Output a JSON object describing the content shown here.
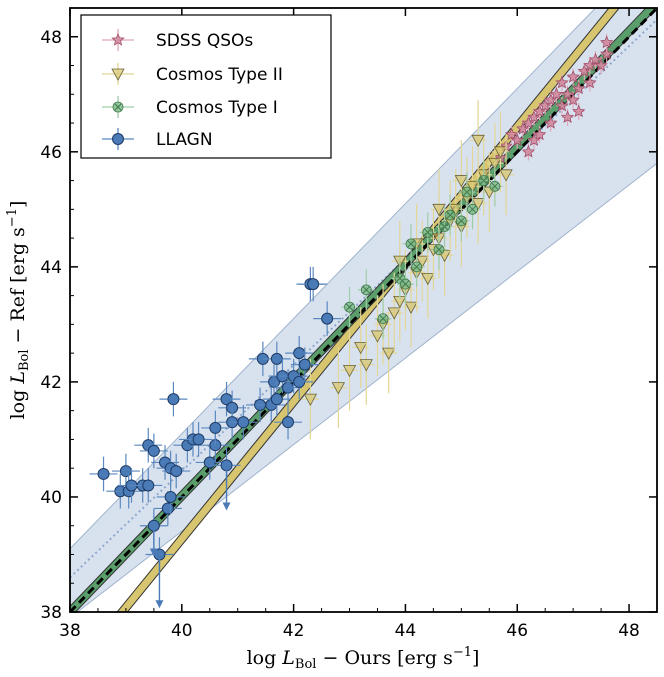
{
  "chart_data": {
    "type": "scatter",
    "title": "",
    "xlabel": "log L_Bol − Ours [erg s−1]",
    "ylabel": "log L_Bol − Ref [erg s−1]",
    "xlabel_parts": {
      "pre": "log ",
      "L": "L",
      "sub": "Bol",
      "post": " − Ours [erg s",
      "sup": "−1",
      "end": "]"
    },
    "ylabel_parts": {
      "pre": "log ",
      "L": "L",
      "sub": "Bol",
      "post": " − Ref [erg s",
      "sup": "−1",
      "end": "]"
    },
    "xlim": [
      38,
      48.5
    ],
    "ylim": [
      38,
      48.5
    ],
    "xticks": [
      38,
      40,
      42,
      44,
      46,
      48
    ],
    "yticks": [
      38,
      40,
      42,
      44,
      46,
      48
    ],
    "xtick_labels": [
      "38",
      "40",
      "42",
      "44",
      "46",
      "48"
    ],
    "ytick_labels": [
      "38",
      "40",
      "42",
      "44",
      "46",
      "48"
    ],
    "legend": {
      "placement": "top-left",
      "entries": [
        {
          "label": "SDSS QSOs",
          "marker": "star",
          "color": "#d0849a"
        },
        {
          "label": "Cosmos Type II",
          "marker": "triangle-down",
          "color": "#d7c66f"
        },
        {
          "label": "Cosmos Type I",
          "marker": "x-circle",
          "color": "#79b783"
        },
        {
          "label": "LLAGN",
          "marker": "circle",
          "color": "#4a7bb7"
        }
      ]
    },
    "confidence_band": {
      "color": "#c3d3e6",
      "lower_at_38": 37.9,
      "lower_at_48.5": 45.8,
      "upper_at_38": 39.1,
      "upper_at_48.5": 49.6
    },
    "fit_lines": [
      {
        "name": "one-to-one",
        "style": "dashed",
        "color": "#000000",
        "x": [
          38,
          48.5
        ],
        "y": [
          38.0,
          48.5
        ]
      },
      {
        "name": "joint fit",
        "style": "dotted",
        "color": "#8fa8cc",
        "x": [
          38,
          48.5
        ],
        "y": [
          38.6,
          48.3
        ]
      },
      {
        "name": "Cosmos Type II fit",
        "style": "band",
        "color": "#d7c66f",
        "x": [
          38.6,
          47.9
        ],
        "y": [
          37.6,
          48.7
        ]
      },
      {
        "name": "Cosmos Type I fit",
        "style": "band",
        "color": "#5a9e6b",
        "x": [
          38,
          48.5
        ],
        "y": [
          38.0,
          48.6
        ]
      }
    ],
    "series": [
      {
        "name": "SDSS QSOs",
        "points": [
          [
            45.8,
            46.1
          ],
          [
            45.9,
            46.3
          ],
          [
            46.0,
            46.2
          ],
          [
            46.1,
            46.4
          ],
          [
            46.2,
            46.5
          ],
          [
            46.2,
            46.0
          ],
          [
            46.3,
            46.6
          ],
          [
            46.4,
            46.7
          ],
          [
            46.4,
            46.3
          ],
          [
            46.5,
            46.8
          ],
          [
            46.6,
            46.9
          ],
          [
            46.6,
            46.5
          ],
          [
            46.7,
            47.0
          ],
          [
            46.8,
            46.8
          ],
          [
            46.8,
            47.2
          ],
          [
            46.9,
            47.0
          ],
          [
            47.0,
            47.3
          ],
          [
            47.0,
            46.9
          ],
          [
            47.1,
            47.1
          ],
          [
            47.2,
            47.4
          ],
          [
            47.3,
            47.2
          ],
          [
            47.3,
            47.5
          ],
          [
            47.4,
            47.6
          ],
          [
            47.5,
            47.5
          ],
          [
            47.6,
            47.7
          ],
          [
            47.1,
            46.7
          ],
          [
            46.3,
            46.2
          ],
          [
            45.7,
            45.9
          ],
          [
            46.9,
            46.6
          ],
          [
            47.6,
            47.9
          ]
        ]
      },
      {
        "name": "Cosmos Type II",
        "points": [
          [
            42.3,
            41.7
          ],
          [
            42.8,
            41.9
          ],
          [
            43.0,
            42.2
          ],
          [
            43.2,
            42.6
          ],
          [
            43.3,
            42.3
          ],
          [
            43.5,
            42.8
          ],
          [
            43.6,
            43.0
          ],
          [
            43.7,
            42.5
          ],
          [
            43.8,
            43.2
          ],
          [
            43.9,
            43.4
          ],
          [
            44.0,
            43.6
          ],
          [
            44.1,
            43.3
          ],
          [
            44.2,
            43.9
          ],
          [
            44.3,
            44.1
          ],
          [
            44.4,
            43.8
          ],
          [
            44.5,
            44.3
          ],
          [
            44.6,
            44.5
          ],
          [
            44.7,
            44.2
          ],
          [
            44.8,
            44.8
          ],
          [
            44.9,
            45.0
          ],
          [
            45.0,
            44.7
          ],
          [
            45.1,
            45.2
          ],
          [
            45.2,
            45.4
          ],
          [
            45.3,
            45.1
          ],
          [
            45.4,
            45.6
          ],
          [
            45.5,
            45.3
          ],
          [
            45.6,
            45.8
          ],
          [
            45.7,
            46.0
          ],
          [
            45.8,
            45.6
          ],
          [
            45.3,
            46.2
          ],
          [
            44.6,
            45.0
          ],
          [
            43.9,
            44.1
          ],
          [
            44.2,
            44.4
          ],
          [
            45.0,
            45.5
          ]
        ]
      },
      {
        "name": "Cosmos Type I",
        "points": [
          [
            43.0,
            43.3
          ],
          [
            43.3,
            43.6
          ],
          [
            43.6,
            43.1
          ],
          [
            43.9,
            43.8
          ],
          [
            44.1,
            44.4
          ],
          [
            44.2,
            44.0
          ],
          [
            44.4,
            44.6
          ],
          [
            44.6,
            44.3
          ],
          [
            44.8,
            44.9
          ],
          [
            45.0,
            44.8
          ],
          [
            45.1,
            45.3
          ],
          [
            45.2,
            45.0
          ],
          [
            45.4,
            45.5
          ],
          [
            45.6,
            45.4
          ],
          [
            44.0,
            43.7
          ],
          [
            44.7,
            44.7
          ]
        ]
      },
      {
        "name": "LLAGN",
        "points": [
          [
            38.6,
            40.4
          ],
          [
            38.9,
            40.1
          ],
          [
            39.0,
            40.45
          ],
          [
            39.05,
            40.1
          ],
          [
            39.1,
            40.2
          ],
          [
            39.3,
            40.2
          ],
          [
            39.4,
            40.2
          ],
          [
            39.4,
            40.9
          ],
          [
            39.5,
            40.8
          ],
          [
            39.6,
            39.0
          ],
          [
            39.7,
            40.6
          ],
          [
            39.75,
            39.8
          ],
          [
            39.8,
            40.0
          ],
          [
            39.8,
            40.5
          ],
          [
            39.85,
            41.7
          ],
          [
            39.9,
            40.45
          ],
          [
            40.1,
            40.9
          ],
          [
            40.2,
            41.0
          ],
          [
            40.3,
            41.0
          ],
          [
            40.5,
            40.6
          ],
          [
            40.6,
            40.9
          ],
          [
            40.6,
            41.2
          ],
          [
            40.8,
            41.7
          ],
          [
            40.9,
            41.55
          ],
          [
            40.9,
            41.3
          ],
          [
            41.1,
            41.3
          ],
          [
            41.4,
            41.6
          ],
          [
            41.45,
            42.4
          ],
          [
            41.6,
            41.6
          ],
          [
            41.65,
            42.0
          ],
          [
            41.7,
            42.4
          ],
          [
            41.7,
            41.7
          ],
          [
            41.8,
            42.1
          ],
          [
            41.9,
            41.3
          ],
          [
            41.9,
            41.9
          ],
          [
            42.0,
            42.1
          ],
          [
            42.1,
            42.0
          ],
          [
            42.1,
            42.5
          ],
          [
            42.2,
            42.3
          ],
          [
            42.3,
            43.7
          ],
          [
            42.35,
            43.7
          ],
          [
            42.6,
            43.1
          ],
          [
            40.8,
            40.55
          ],
          [
            39.5,
            39.5
          ]
        ]
      }
    ]
  }
}
